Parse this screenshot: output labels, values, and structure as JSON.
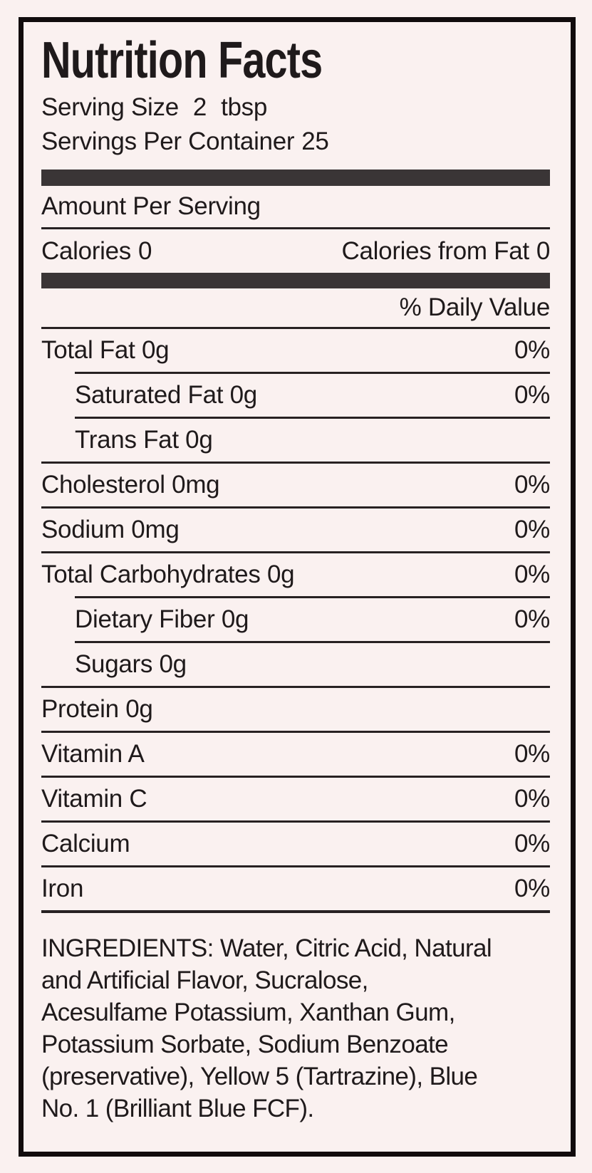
{
  "label": {
    "title": "Nutrition Facts",
    "serving": {
      "label": "Serving Size",
      "value": "2",
      "unit": "tbsp"
    },
    "servings_per_container": {
      "label": "Servings Per Container",
      "value": "25"
    },
    "amount_per_serving": "Amount Per Serving",
    "calories": {
      "label": "Calories",
      "value": "0"
    },
    "calories_from_fat": {
      "label": "Calories from Fat",
      "value": "0"
    },
    "daily_value_header": "% Daily Value",
    "rows": [
      {
        "name": "Total Fat 0g",
        "dv": "0%"
      },
      {
        "name": "Saturated Fat 0g",
        "dv": "0%"
      },
      {
        "name": "Trans Fat 0g",
        "dv": ""
      },
      {
        "name": "Cholesterol 0mg",
        "dv": "0%"
      },
      {
        "name": "Sodium 0mg",
        "dv": "0%"
      },
      {
        "name": "Total Carbohydrates 0g",
        "dv": "0%"
      },
      {
        "name": "Dietary Fiber 0g",
        "dv": "0%"
      },
      {
        "name": "Sugars 0g",
        "dv": ""
      },
      {
        "name": "Protein 0g",
        "dv": ""
      },
      {
        "name": "Vitamin A",
        "dv": "0%"
      },
      {
        "name": "Vitamin C",
        "dv": "0%"
      },
      {
        "name": "Calcium",
        "dv": "0%"
      },
      {
        "name": "Iron",
        "dv": "0%"
      }
    ],
    "ingredients": "INGREDIENTS: Water, Citric Acid, Natural\nand Artificial Flavor, Sucralose,\nAcesulfame Potassium, Xanthan Gum,\nPotassium Sorbate, Sodium Benzoate\n(preservative), Yellow 5 (Tartrazine), Blue\nNo. 1 (Brilliant Blue FCF)."
  },
  "colors": {
    "background": "#faf1f0",
    "ink": "#1f1a1b",
    "border": "#110c0d",
    "bar": "#3a3536",
    "rule": "#272122"
  }
}
